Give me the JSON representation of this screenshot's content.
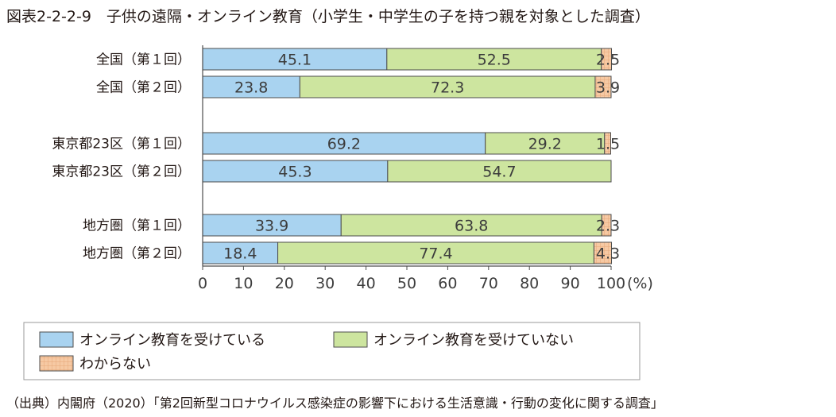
{
  "title": "図表2-2-2-9　子供の遠隔・オンライン教育（小学生・中学生の子を持つ親を対象とした調査）",
  "source": "（出典）内閣府（2020）「第2回新型コロナウイルス感染症の影響下における生活意識・行動の変化に関する調査」",
  "colors": {
    "receiving": "#a9d3f0",
    "not_receiving": "#cde59f",
    "unknown": "#f6c9a3",
    "unknown_grid": "#e6a878",
    "border": "#4d4d4d"
  },
  "chart_data": {
    "type": "bar",
    "orientation": "horizontal",
    "stacked": true,
    "categories": [
      "全国（第１回）",
      "全国（第２回）",
      "東京都23区（第１回）",
      "東京都23区（第２回）",
      "地方圏（第１回）",
      "地方圏（第２回）"
    ],
    "series": [
      {
        "name": "オンライン教育を受けている",
        "values": [
          45.1,
          23.8,
          69.2,
          45.3,
          33.9,
          18.4
        ],
        "labels": [
          "45.1",
          "23.8",
          "69.2",
          "45.3",
          "33.9",
          "18.4"
        ]
      },
      {
        "name": "オンライン教育を受けていない",
        "values": [
          52.5,
          72.3,
          29.2,
          54.7,
          63.8,
          77.4
        ],
        "labels": [
          "52.5",
          "72.3",
          "29.2",
          "54.7",
          "63.8",
          "77.4"
        ]
      },
      {
        "name": "わからない",
        "values": [
          2.5,
          3.9,
          1.5,
          0,
          2.3,
          4.3
        ],
        "labels": [
          "2.5",
          "3.9",
          "1.5",
          "",
          "2.3",
          "4.3"
        ]
      }
    ],
    "xlim": [
      0,
      100
    ],
    "xticks": [
      "0",
      "10",
      "20",
      "30",
      "40",
      "50",
      "60",
      "70",
      "80",
      "90",
      "100"
    ],
    "xunit": "(%)",
    "legend_position": "bottom"
  }
}
